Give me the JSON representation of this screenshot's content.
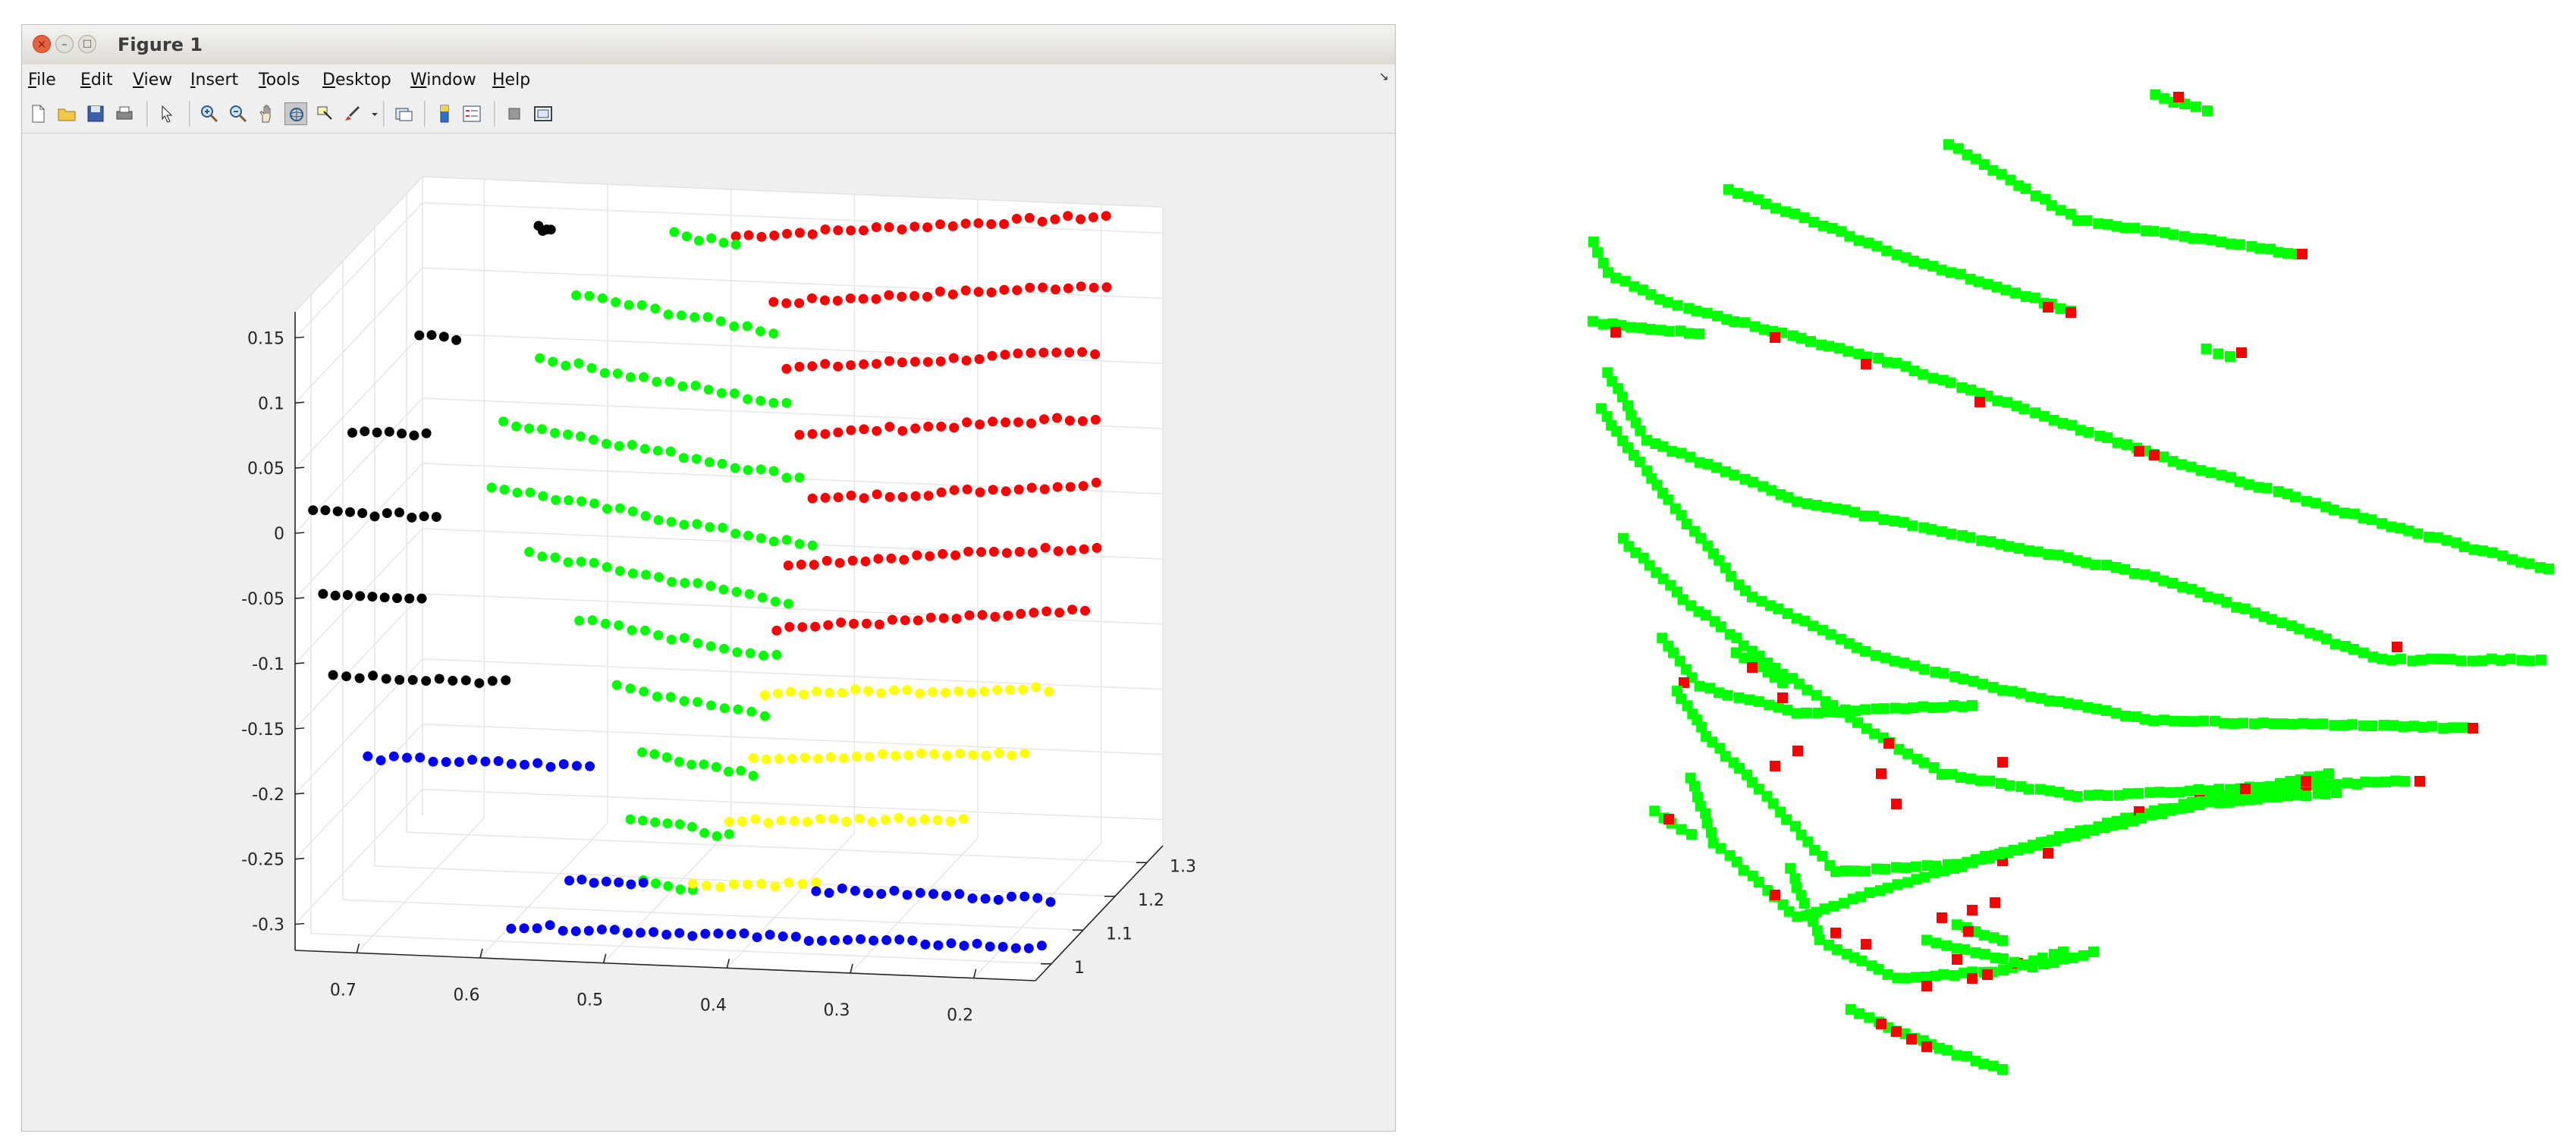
{
  "window": {
    "title": "Figure 1",
    "close_glyph": "×",
    "minimize_glyph": "–",
    "maximize_glyph": "□"
  },
  "menubar": {
    "items": [
      {
        "label": "File",
        "underline": "F",
        "rest": "ile"
      },
      {
        "label": "Edit",
        "underline": "E",
        "rest": "dit"
      },
      {
        "label": "View",
        "underline": "V",
        "rest": "iew"
      },
      {
        "label": "Insert",
        "underline": "I",
        "rest": "nsert"
      },
      {
        "label": "Tools",
        "underline": "T",
        "rest": "ools"
      },
      {
        "label": "Desktop",
        "underline": "D",
        "rest": "esktop"
      },
      {
        "label": "Window",
        "underline": "W",
        "rest": "indow"
      },
      {
        "label": "Help",
        "underline": "H",
        "rest": "elp"
      }
    ],
    "chevron": "↘"
  },
  "toolbar": {
    "icons": [
      "new-figure-icon",
      "open-file-icon",
      "save-icon",
      "print-icon",
      "select-arrow-icon",
      "zoom-in-icon",
      "zoom-out-icon",
      "pan-hand-icon",
      "rotate-3d-icon",
      "data-cursor-icon",
      "brush-icon",
      "brush-dropdown-icon",
      "link-plot-icon",
      "colorbar-icon",
      "legend-icon",
      "hide-plot-tools-icon",
      "show-plot-tools-icon"
    ]
  },
  "colors": {
    "red": "#ff0000",
    "green": "#00ff00",
    "yellow": "#ffff00",
    "blue": "#0000ff",
    "black": "#000000"
  },
  "chart_data": [
    {
      "type": "scatter",
      "projection": "3d",
      "title": "",
      "xlabel": "",
      "ylabel": "",
      "zlabel": "",
      "x_ticks": [
        "0.7",
        "0.6",
        "0.5",
        "0.4",
        "0.3",
        "0.2"
      ],
      "y_ticks": [
        "1",
        "1.1",
        "1.2",
        "1.3"
      ],
      "z_ticks": [
        "0.15",
        "0.1",
        "0.05",
        "0",
        "-0.05",
        "-0.1",
        "-0.15",
        "-0.2",
        "-0.25",
        "-0.3"
      ],
      "xlim": [
        0.15,
        0.75
      ],
      "ylim": [
        0.95,
        1.35
      ],
      "zlim": [
        -0.32,
        0.17
      ],
      "grid": true,
      "marker": "filled circle",
      "series": [
        {
          "color": "red",
          "scanlines": [
            {
              "z": 0.13,
              "x_from": 0.5,
              "x_to": 0.2
            },
            {
              "z": 0.09,
              "x_from": 0.46,
              "x_to": 0.19
            },
            {
              "z": 0.05,
              "x_from": 0.44,
              "x_to": 0.19
            },
            {
              "z": 0.01,
              "x_from": 0.42,
              "x_to": 0.18
            },
            {
              "z": -0.03,
              "x_from": 0.4,
              "x_to": 0.17
            },
            {
              "z": -0.07,
              "x_from": 0.41,
              "x_to": 0.16
            },
            {
              "z": -0.11,
              "x_from": 0.41,
              "x_to": 0.16
            }
          ]
        },
        {
          "color": "green",
          "scanlines": [
            {
              "z": 0.13,
              "x_from": 0.55,
              "x_to": 0.5
            },
            {
              "z": 0.09,
              "x_from": 0.62,
              "x_to": 0.46
            },
            {
              "z": 0.05,
              "x_from": 0.64,
              "x_to": 0.44
            },
            {
              "z": 0.01,
              "x_from": 0.66,
              "x_to": 0.42
            },
            {
              "z": -0.03,
              "x_from": 0.66,
              "x_to": 0.4
            },
            {
              "z": -0.07,
              "x_from": 0.62,
              "x_to": 0.41
            },
            {
              "z": -0.11,
              "x_from": 0.57,
              "x_to": 0.41
            },
            {
              "z": -0.15,
              "x_from": 0.53,
              "x_to": 0.41
            },
            {
              "z": -0.19,
              "x_from": 0.5,
              "x_to": 0.41
            },
            {
              "z": -0.23,
              "x_from": 0.5,
              "x_to": 0.42
            },
            {
              "z": -0.27,
              "x_from": 0.48,
              "x_to": 0.44
            }
          ]
        },
        {
          "color": "yellow",
          "scanlines": [
            {
              "z": -0.15,
              "x_from": 0.41,
              "x_to": 0.18
            },
            {
              "z": -0.19,
              "x_from": 0.41,
              "x_to": 0.19
            },
            {
              "z": -0.23,
              "x_from": 0.42,
              "x_to": 0.23
            },
            {
              "z": -0.27,
              "x_from": 0.44,
              "x_to": 0.34
            }
          ]
        },
        {
          "color": "blue",
          "scanlines": [
            {
              "z": -0.2,
              "x_from": 0.72,
              "x_to": 0.54
            },
            {
              "z": -0.27,
              "x_from": 0.54,
              "x_to": 0.48
            },
            {
              "z": -0.27,
              "x_from": 0.34,
              "x_to": 0.15
            },
            {
              "z": -0.3,
              "x_from": 0.58,
              "x_to": 0.15
            }
          ]
        },
        {
          "color": "black",
          "scanlines": [
            {
              "z": 0.13,
              "x_from": 0.66,
              "x_to": 0.65
            },
            {
              "z": 0.06,
              "x_from": 0.74,
              "x_to": 0.71
            },
            {
              "z": 0.0,
              "x_from": 0.78,
              "x_to": 0.72
            },
            {
              "z": -0.05,
              "x_from": 0.8,
              "x_to": 0.7
            },
            {
              "z": -0.1,
              "x_from": 0.78,
              "x_to": 0.7
            },
            {
              "z": -0.15,
              "x_from": 0.76,
              "x_to": 0.62
            }
          ]
        }
      ]
    },
    {
      "type": "scatter",
      "title": "",
      "xlabel": "",
      "ylabel": "",
      "grid": false,
      "axes_visible": false,
      "marker": "filled square",
      "series": [
        {
          "color": "green",
          "description_points": "scanline strokes"
        },
        {
          "color": "red",
          "description_points": "scanline strokes"
        }
      ]
    }
  ]
}
